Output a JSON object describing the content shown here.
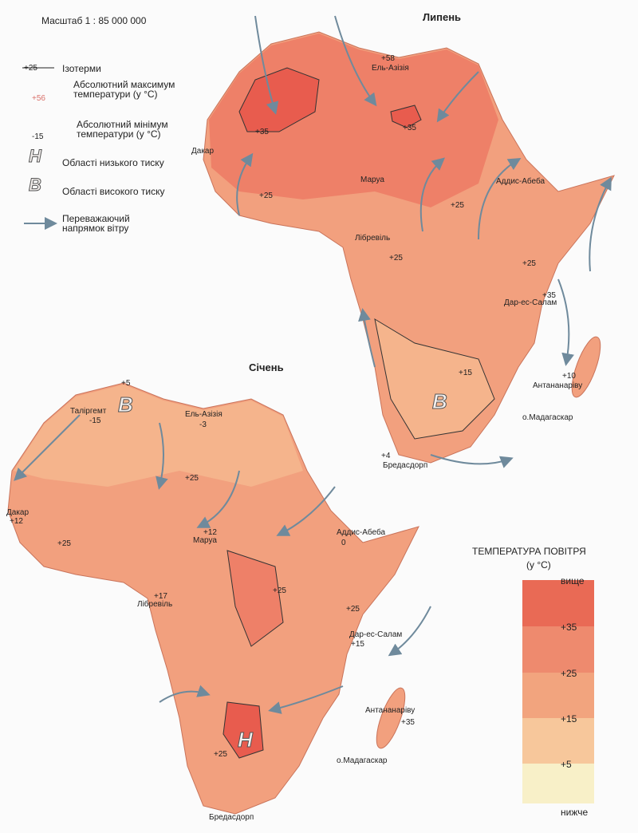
{
  "header": {
    "scale": "Масштаб 1 : 85 000 000"
  },
  "legend": {
    "items": [
      {
        "symbol": "+25",
        "label": "Ізотерми"
      },
      {
        "symbol": "+56",
        "label": "Абсолютний максимум температури (у °C)"
      },
      {
        "symbol": "-15",
        "label": "Абсолютний мінімум температури (у °C)"
      },
      {
        "symbol": "H",
        "label": "Області низького тиску"
      },
      {
        "symbol": "B",
        "label": "Області високого тиску"
      },
      {
        "label": "Переважаючий напрямок вітру"
      }
    ]
  },
  "temperature_scale": {
    "title": "ТЕМПЕРАТУРА ПОВІТРЯ",
    "unit": "(у °C)",
    "labels": [
      "вище",
      "+35",
      "+25",
      "+15",
      "+5",
      "нижче"
    ]
  },
  "maps": [
    {
      "title": "Липень",
      "labels": [
        "Ель-Азізія",
        "+58",
        "+35",
        "+35",
        "Дакар",
        "+25",
        "Маруа",
        "Аддис-Абеба",
        "+25",
        "Лібревіль",
        "+25",
        "+25",
        "+35",
        "Дар-ес-Салам",
        "+15",
        "+10",
        "Антананаріву",
        "B",
        "о.Мадагаскар",
        "+4",
        "Бредасдорп"
      ]
    },
    {
      "title": "Січень",
      "labels": [
        "+5",
        "Таліргемт",
        "-15",
        "B",
        "Ель-Азізія",
        "-3",
        "+25",
        "Дакар",
        "+12",
        "+25",
        "+12",
        "Маруа",
        "Аддис-Абеба",
        "0",
        "+25",
        "+17",
        "Лібревіль",
        "+25",
        "Дар-ес-Салам",
        "+15",
        "Антананаріву",
        "+35",
        "H",
        "+25",
        "о.Мадагаскар",
        "Бредасдорп"
      ]
    }
  ]
}
